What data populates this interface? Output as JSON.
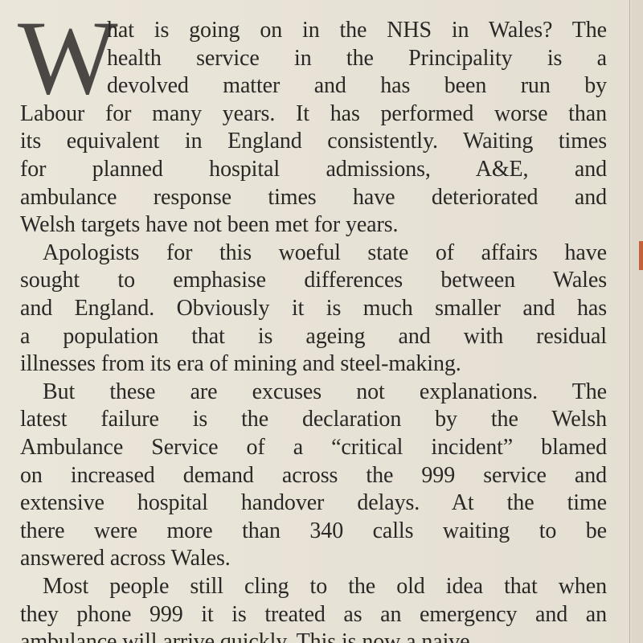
{
  "article": {
    "drop_cap": "W",
    "paragraphs": [
      {
        "lines": [
          "hat is going on in the NHS in Wales? The",
          "health service in the Principality is a",
          "devolved matter and has been run by",
          "Labour for many years. It has performed worse than",
          "its equivalent in England consistently. Waiting times",
          "for planned hospital admissions, A&E, and",
          "ambulance response times have deteriorated and",
          "Welsh targets have not been met for years."
        ]
      },
      {
        "lines": [
          "Apologists for this woeful state of affairs have",
          "sought to emphasise differences between Wales",
          "and England. Obviously it is much smaller and has",
          "a population that is ageing and with residual",
          "illnesses from its era of mining and steel-making."
        ]
      },
      {
        "lines": [
          "But these are excuses not explanations. The",
          "latest failure is the declaration by the Welsh",
          "Ambulance Service of a “critical incident” blamed",
          "on increased demand across the 999 service and",
          "extensive hospital handover delays. At the time",
          "there were more than 340 calls waiting to be",
          "answered across Wales."
        ]
      },
      {
        "lines": [
          "Most people still cling to the old idea that when",
          "they phone 999 it is treated as an emergency and an",
          "ambulance will arrive quickly. This is now a naive"
        ]
      }
    ]
  }
}
